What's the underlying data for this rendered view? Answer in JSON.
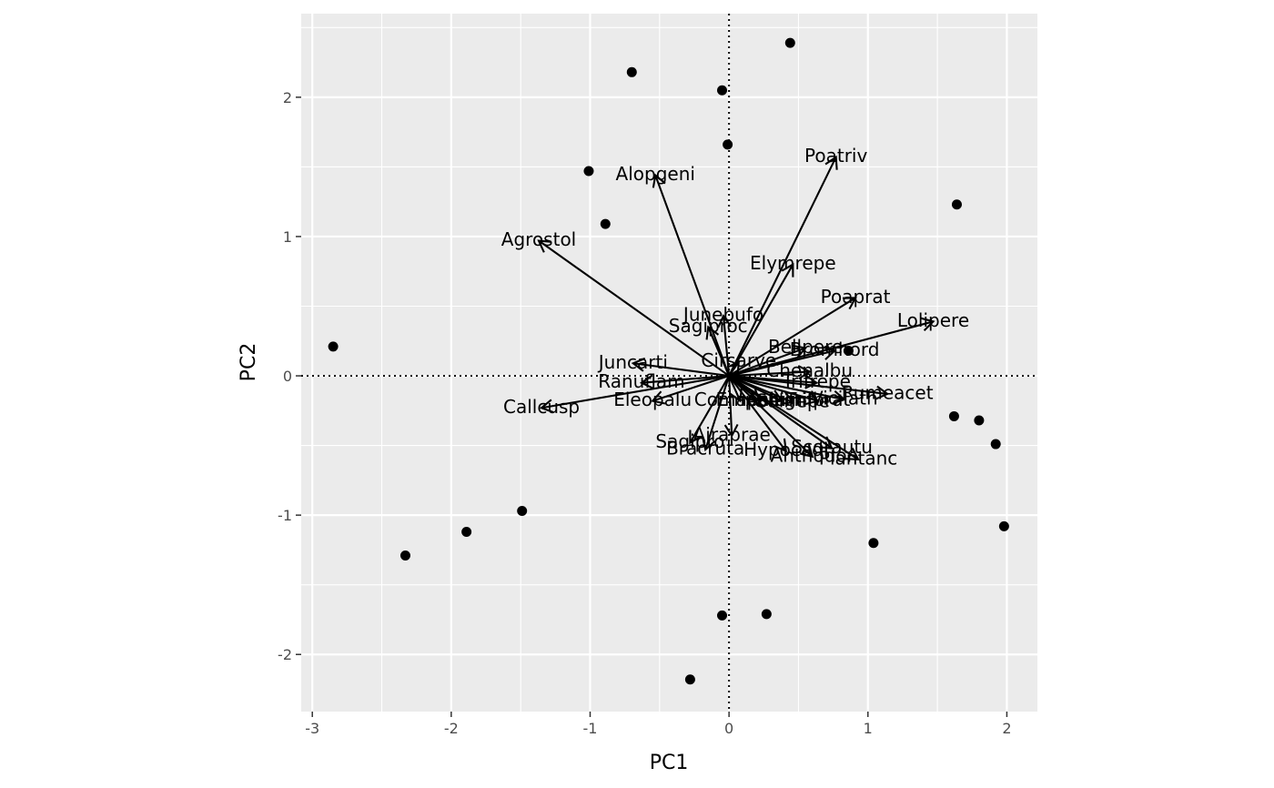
{
  "chart_data": {
    "type": "scatter",
    "title": "",
    "xlabel": "PC1",
    "ylabel": "PC2",
    "xlim": [
      -3.08,
      2.22
    ],
    "ylim": [
      -2.41,
      2.6
    ],
    "xticks": [
      -3,
      -2,
      -1,
      0,
      1,
      2
    ],
    "yticks": [
      -2,
      -1,
      0,
      1,
      2
    ],
    "xtick_labels": [
      "-3",
      "-2",
      "-1",
      "0",
      "1",
      "2"
    ],
    "ytick_labels": [
      "-2",
      "-1",
      "0",
      "1",
      "2"
    ],
    "grid": true,
    "reference_lines": {
      "x": 0,
      "y": 0,
      "style": "dotted"
    },
    "points": [
      {
        "x": 0.44,
        "y": 2.39
      },
      {
        "x": -0.7,
        "y": 2.18
      },
      {
        "x": -0.05,
        "y": 2.05
      },
      {
        "x": -0.01,
        "y": 1.66
      },
      {
        "x": -1.01,
        "y": 1.47
      },
      {
        "x": -0.89,
        "y": 1.09
      },
      {
        "x": 1.64,
        "y": 1.23
      },
      {
        "x": -2.85,
        "y": 0.21
      },
      {
        "x": 0.86,
        "y": 0.18
      },
      {
        "x": 1.62,
        "y": -0.29
      },
      {
        "x": 1.8,
        "y": -0.32
      },
      {
        "x": 1.92,
        "y": -0.49
      },
      {
        "x": 1.98,
        "y": -1.08
      },
      {
        "x": 1.04,
        "y": -1.2
      },
      {
        "x": -1.49,
        "y": -0.97
      },
      {
        "x": -1.89,
        "y": -1.12
      },
      {
        "x": -2.33,
        "y": -1.29
      },
      {
        "x": 0.27,
        "y": -1.71
      },
      {
        "x": -0.05,
        "y": -1.72
      },
      {
        "x": -0.28,
        "y": -2.18
      }
    ],
    "loadings": [
      {
        "label": "Poatriv",
        "x": 0.77,
        "y": 1.57
      },
      {
        "label": "Alopgeni",
        "x": -0.53,
        "y": 1.44
      },
      {
        "label": "Agrostol",
        "x": -1.37,
        "y": 0.97
      },
      {
        "label": "Elymrepe",
        "x": 0.46,
        "y": 0.8
      },
      {
        "label": "Poaprat",
        "x": 0.91,
        "y": 0.56
      },
      {
        "label": "Lolipere",
        "x": 1.47,
        "y": 0.39
      },
      {
        "label": "Junebufo",
        "x": -0.04,
        "y": 0.43
      },
      {
        "label": "Sagiproc",
        "x": -0.15,
        "y": 0.35
      },
      {
        "label": "Bromhord",
        "x": 0.76,
        "y": 0.18
      },
      {
        "label": "Bellpere",
        "x": 0.55,
        "y": 0.2
      },
      {
        "label": "Cirsarve",
        "x": 0.07,
        "y": 0.1
      },
      {
        "label": "Juncarti",
        "x": -0.69,
        "y": 0.09
      },
      {
        "label": "Ranuflam",
        "x": -0.63,
        "y": -0.05
      },
      {
        "label": "Callcusp",
        "x": -1.35,
        "y": -0.23
      },
      {
        "label": "Eleopalu",
        "x": -0.55,
        "y": -0.18
      },
      {
        "label": "Chenalbu",
        "x": 0.58,
        "y": 0.03
      },
      {
        "label": "Trifrepe",
        "x": 0.63,
        "y": -0.05
      },
      {
        "label": "Rumeacet",
        "x": 1.14,
        "y": -0.13
      },
      {
        "label": "Vicilath",
        "x": 0.83,
        "y": -0.17
      },
      {
        "label": "Comapalu",
        "x": 0.08,
        "y": -0.18
      },
      {
        "label": "Empenigr",
        "x": 0.22,
        "y": -0.18
      },
      {
        "label": "Achimill",
        "x": 0.38,
        "y": -0.18
      },
      {
        "label": "Salirepe",
        "x": 0.46,
        "y": -0.19
      },
      {
        "label": "Trifprat",
        "x": 0.64,
        "y": -0.18
      },
      {
        "label": "Airaprae",
        "x": 0.02,
        "y": -0.43
      },
      {
        "label": "Scorautu",
        "x": 0.74,
        "y": -0.52
      },
      {
        "label": "Hypocadi",
        "x": 0.41,
        "y": -0.54
      },
      {
        "label": "Sagipro",
        "x": -0.28,
        "y": -0.48
      },
      {
        "label": "Bracruta",
        "x": -0.17,
        "y": -0.53
      },
      {
        "label": "Anthodor",
        "x": 0.6,
        "y": -0.58
      },
      {
        "label": "Plantanc",
        "x": 0.93,
        "y": -0.6
      }
    ]
  }
}
